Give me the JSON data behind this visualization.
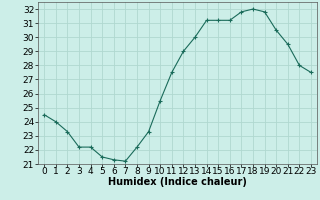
{
  "x": [
    0,
    1,
    2,
    3,
    4,
    5,
    6,
    7,
    8,
    9,
    10,
    11,
    12,
    13,
    14,
    15,
    16,
    17,
    18,
    19,
    20,
    21,
    22,
    23
  ],
  "y": [
    24.5,
    24.0,
    23.3,
    22.2,
    22.2,
    21.5,
    21.3,
    21.2,
    22.2,
    23.3,
    25.5,
    27.5,
    29.0,
    30.0,
    31.2,
    31.2,
    31.2,
    31.8,
    32.0,
    31.8,
    30.5,
    29.5,
    28.0,
    27.5
  ],
  "xlabel": "Humidex (Indice chaleur)",
  "line_color": "#1a6b5a",
  "marker": "+",
  "marker_color": "#1a6b5a",
  "bg_color": "#cceee8",
  "grid_color": "#b0d8d0",
  "xlim": [
    -0.5,
    23.5
  ],
  "ylim": [
    21,
    32.5
  ],
  "yticks": [
    21,
    22,
    23,
    24,
    25,
    26,
    27,
    28,
    29,
    30,
    31,
    32
  ],
  "xticks": [
    0,
    1,
    2,
    3,
    4,
    5,
    6,
    7,
    8,
    9,
    10,
    11,
    12,
    13,
    14,
    15,
    16,
    17,
    18,
    19,
    20,
    21,
    22,
    23
  ],
  "xlabel_fontsize": 7,
  "tick_fontsize": 6.5
}
